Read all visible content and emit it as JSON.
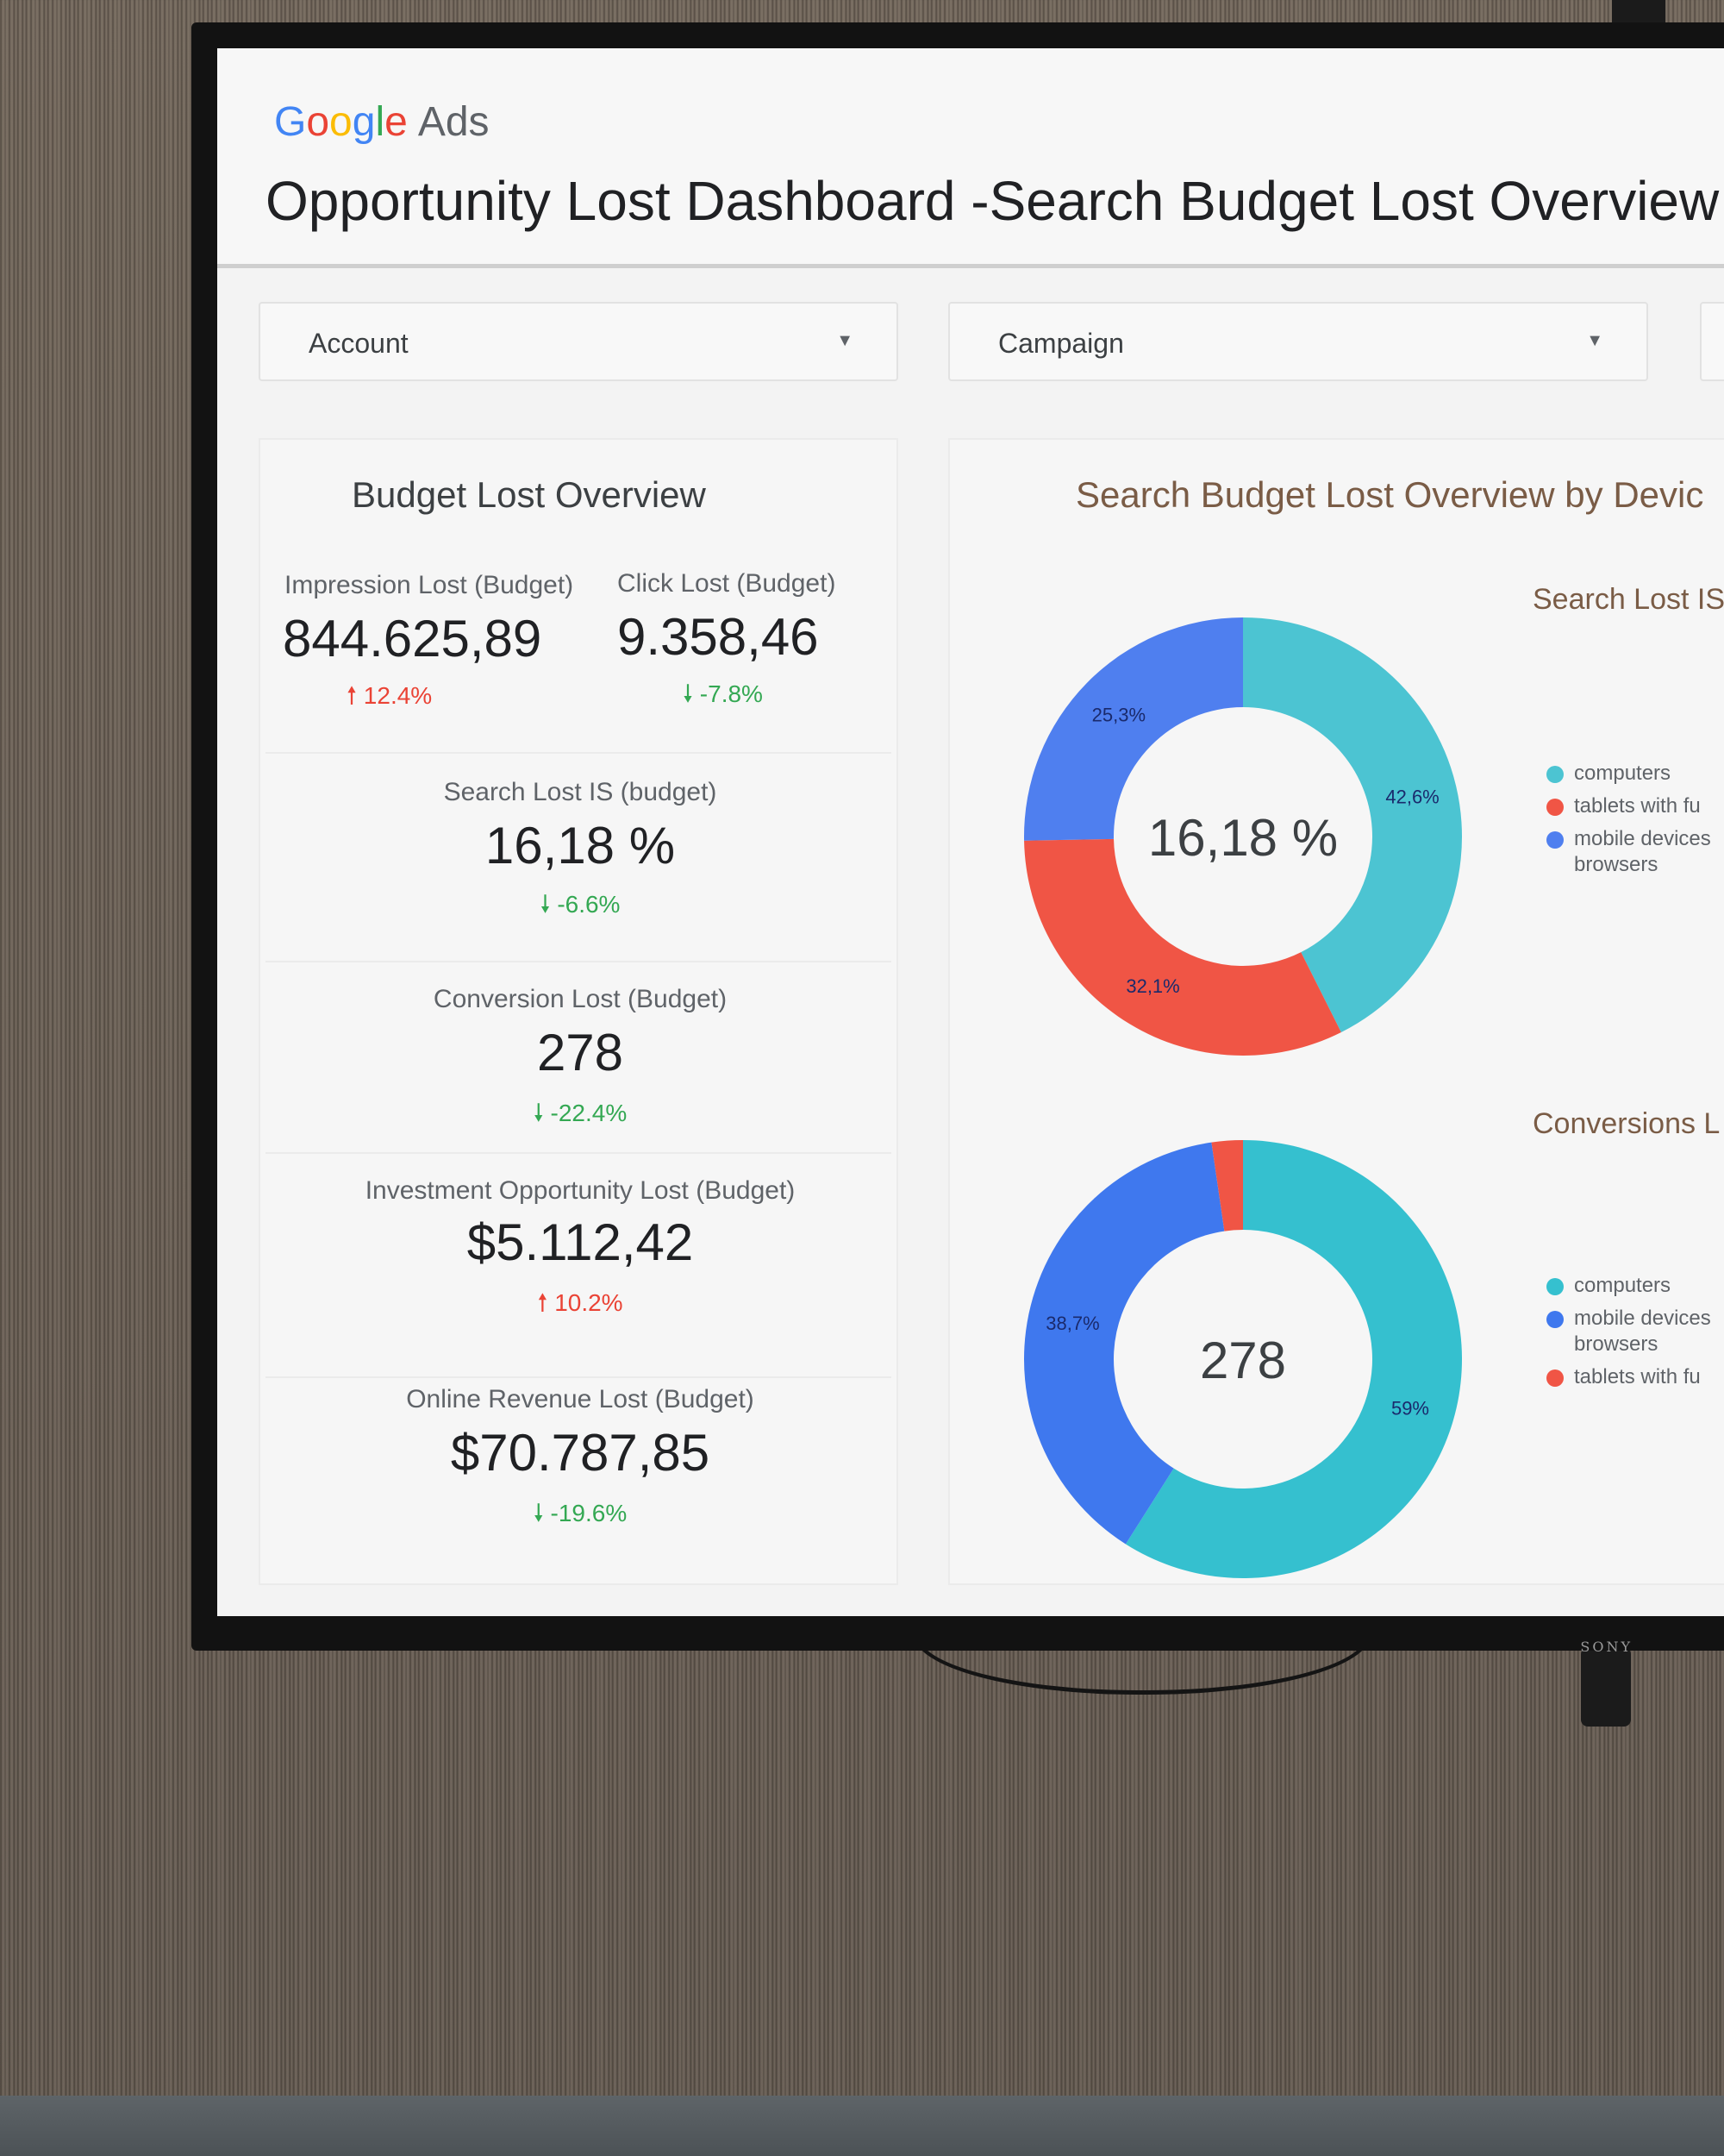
{
  "header": {
    "logo": {
      "g1": "G",
      "g2": "o",
      "g3": "o",
      "g4": "g",
      "g5": "l",
      "g6": "e",
      "product": "Ads"
    },
    "title": "Opportunity Lost Dashboard -Search Budget Lost Overview"
  },
  "filters": [
    {
      "label": "Account"
    },
    {
      "label": "Campaign"
    }
  ],
  "overview": {
    "title": "Budget Lost Overview",
    "metrics": {
      "impression": {
        "label": "Impression Lost (Budget)",
        "value": "844.625,89",
        "delta": "12.4%",
        "direction": "up"
      },
      "click": {
        "label": "Click Lost (Budget)",
        "value": "9.358,46",
        "delta": "-7.8%",
        "direction": "down"
      },
      "search_is": {
        "label": "Search Lost IS (budget)",
        "value": "16,18 %",
        "delta": "-6.6%",
        "direction": "down"
      },
      "conversion": {
        "label": "Conversion Lost (Budget)",
        "value": "278",
        "delta": "-22.4%",
        "direction": "down"
      },
      "investment": {
        "label": "Investment Opportunity Lost (Budget)",
        "value": "$5.112,42",
        "delta": "10.2%",
        "direction": "up"
      },
      "revenue": {
        "label": "Online Revenue Lost (Budget)",
        "value": "$70.787,85",
        "delta": "-19.6%",
        "direction": "down"
      }
    }
  },
  "device_section": {
    "title": "Search Budget Lost Overview by Devic",
    "chart1": {
      "legend_title": "Search Lost IS",
      "center_label": "16,18 %"
    },
    "chart2": {
      "legend_title": "Conversions L",
      "center_label": "278"
    }
  },
  "colors": {
    "computers": "#4cc4d2",
    "tablets": "#f05545",
    "mobile": "#4f7fef",
    "up": "#EA4335",
    "down": "#34A853"
  },
  "chart_data": [
    {
      "type": "pie",
      "title": "Search Lost IS",
      "center_value": "16,18 %",
      "slices": [
        {
          "label": "computers",
          "value": 42.6,
          "display": "42,6%",
          "color": "#4cc4d2"
        },
        {
          "label": "tablets with fu",
          "value": 32.1,
          "display": "32,1%",
          "color": "#f05545"
        },
        {
          "label": "mobile devices browsers",
          "value": 25.3,
          "display": "25,3%",
          "color": "#4f7fef"
        }
      ]
    },
    {
      "type": "pie",
      "title": "Conversions L",
      "center_value": "278",
      "slices": [
        {
          "label": "computers",
          "value": 59,
          "display": "59%",
          "color": "#35c0cf"
        },
        {
          "label": "mobile devices browsers",
          "value": 38.7,
          "display": "38,7%",
          "color": "#3f78ee"
        },
        {
          "label": "tablets with fu",
          "value": 2.3,
          "display": "",
          "color": "#f05545"
        }
      ]
    }
  ]
}
